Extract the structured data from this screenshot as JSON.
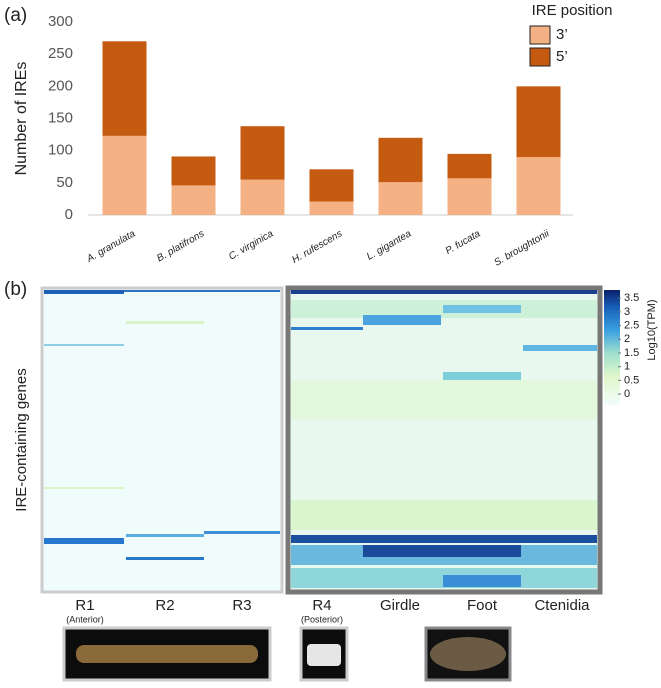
{
  "chart_data": [
    {
      "type": "bar",
      "stacked": true,
      "panel": "(a)",
      "ylabel": "Number of IREs",
      "categories": [
        "A. granulata",
        "B. platifrons",
        "C. virginica",
        "H. rufescens",
        "L. gigantea",
        "P. fucata",
        "S. broughtonii"
      ],
      "series": [
        {
          "name": "3’",
          "color": "#f4b183",
          "values": [
            123,
            46,
            55,
            21,
            51,
            57,
            90
          ]
        },
        {
          "name": "5’",
          "color": "#c55a11",
          "values": [
            147,
            45,
            83,
            50,
            69,
            38,
            110
          ]
        }
      ],
      "legend_title": "IRE position",
      "ylim": [
        0,
        300
      ],
      "yticks": [
        0,
        50,
        100,
        150,
        200,
        250,
        300
      ]
    },
    {
      "type": "heatmap",
      "panel": "(b)",
      "ylabel": "IRE-containing genes",
      "columns": [
        "R1",
        "R2",
        "R3",
        "R4",
        "Girdle",
        "Foot",
        "Ctenidia"
      ],
      "column_notes": [
        "(Anterior)",
        null,
        null,
        "(Posterior)",
        null,
        null,
        null
      ],
      "colorbar_label": "Log10(TPM)",
      "colorbar_lim": [
        -0.4,
        3.8
      ],
      "colorbar_ticks": [
        0,
        0.5,
        1,
        1.5,
        2,
        2.5,
        3,
        3.5
      ]
    }
  ]
}
